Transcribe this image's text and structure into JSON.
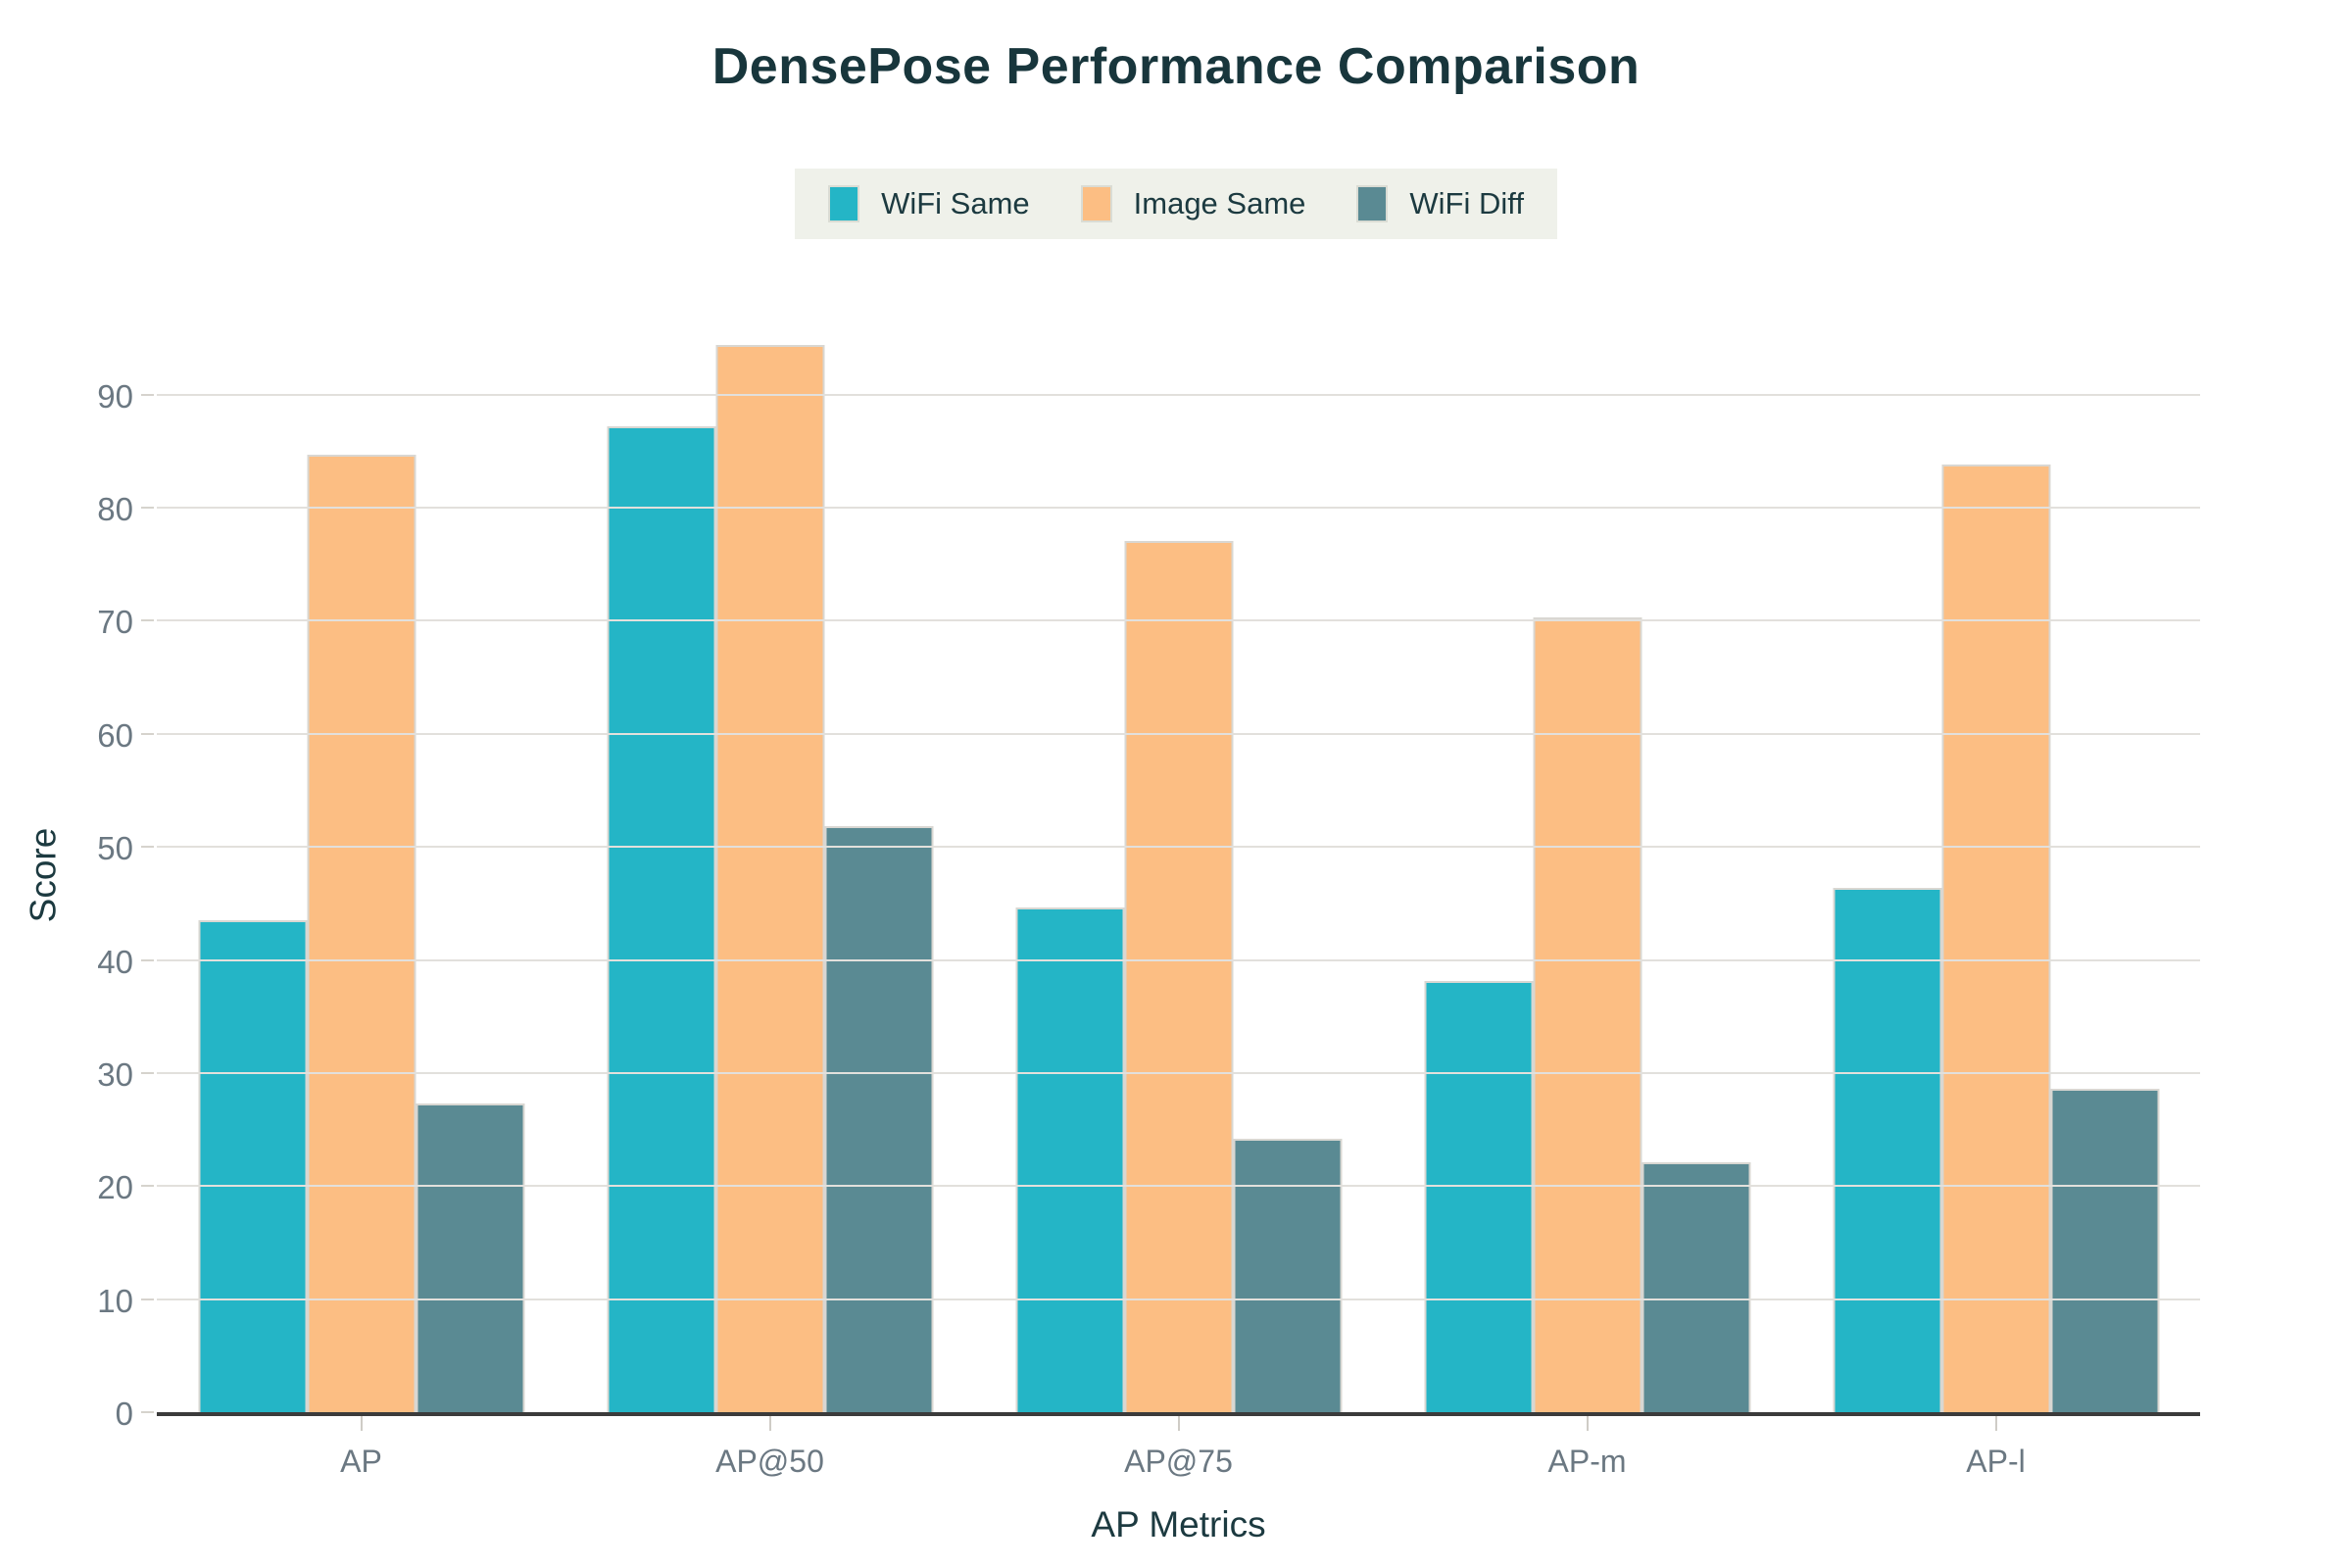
{
  "chart_data": {
    "type": "bar",
    "title": "DensePose Performance Comparison",
    "xlabel": "AP Metrics",
    "ylabel": "Score",
    "categories": [
      "AP",
      "AP@50",
      "AP@75",
      "AP-m",
      "AP-l"
    ],
    "series": [
      {
        "name": "WiFi Same",
        "color": "#24b5c6",
        "values": [
          43.5,
          87.2,
          44.6,
          38.1,
          46.4
        ]
      },
      {
        "name": "Image Same",
        "color": "#fcbe83",
        "values": [
          84.7,
          94.4,
          77.1,
          70.3,
          83.8
        ]
      },
      {
        "name": "WiFi Diff",
        "color": "#5a8a93",
        "values": [
          27.3,
          51.8,
          24.2,
          22.1,
          28.6
        ]
      }
    ],
    "ylim": [
      0,
      95
    ],
    "yticks": [
      0,
      10,
      20,
      30,
      40,
      50,
      60,
      70,
      80,
      90
    ],
    "grid": true,
    "legend_position": "top-center"
  },
  "colors": {
    "title_text": "#18363c",
    "axis_title_text": "#1c3a40",
    "tick_text": "#6b7882",
    "gridline": "#e2e0dc",
    "axis_line": "#3b3b3b",
    "legend_background": "#eff1ea",
    "background": "#ffffff"
  }
}
